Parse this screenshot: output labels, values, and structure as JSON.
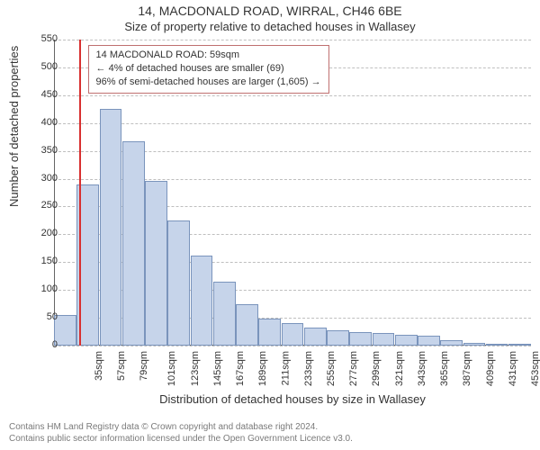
{
  "chart": {
    "type": "histogram",
    "title": "14, MACDONALD ROAD, WIRRAL, CH46 6BE",
    "subtitle": "Size of property relative to detached houses in Wallasey",
    "ylabel": "Number of detached properties",
    "xlabel": "Distribution of detached houses by size in Wallasey",
    "background_color": "#ffffff",
    "grid_color": "#bfbfbf",
    "axis_color": "#666666",
    "bar_fill": "#c6d4ea",
    "bar_border": "#7a94bc",
    "marker_color": "#d83030",
    "title_fontsize": 14,
    "subtitle_fontsize": 13,
    "label_fontsize": 13,
    "tick_fontsize": 11,
    "ylim": [
      0,
      550
    ],
    "ytick_step": 50,
    "x_start": 35,
    "x_step": 22,
    "x_unit": "sqm",
    "values": [
      55,
      290,
      425,
      368,
      296,
      225,
      162,
      115,
      75,
      48,
      40,
      32,
      28,
      25,
      22,
      20,
      18,
      10,
      5,
      3,
      2
    ],
    "marker_x": 59,
    "callout": {
      "line1": "14 MACDONALD ROAD: 59sqm",
      "line2": "← 4% of detached houses are smaller (69)",
      "line3": "96% of semi-detached houses are larger (1,605) →",
      "border_color": "#c07070",
      "background": "#ffffff"
    },
    "footer": {
      "line1": "Contains HM Land Registry data © Crown copyright and database right 2024.",
      "line2": "Contains public sector information licensed under the Open Government Licence v3.0.",
      "color": "#7a7a7a"
    }
  }
}
